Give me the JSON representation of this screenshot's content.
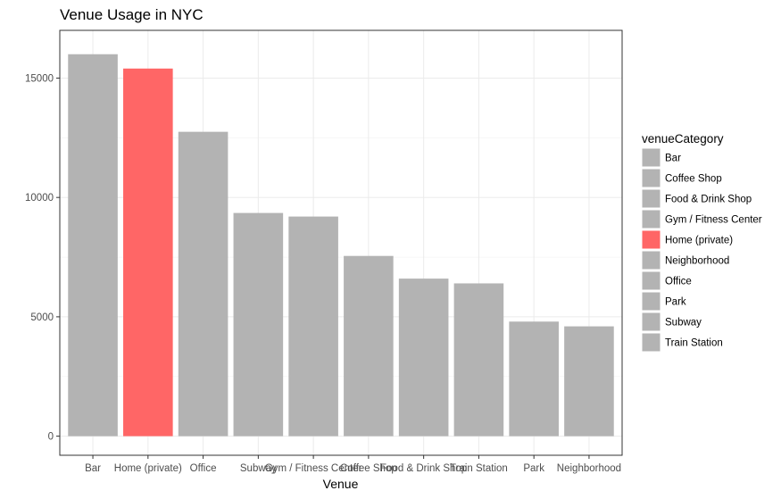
{
  "chart_data": {
    "type": "bar",
    "title": "Venue Usage in NYC",
    "xlabel": "Venue",
    "ylabel": "",
    "ylim": [
      -800,
      17000
    ],
    "yticks": [
      0,
      5000,
      10000,
      15000
    ],
    "yticks_labels": [
      "0",
      "5000",
      "10000",
      "15000"
    ],
    "grid": true,
    "legend_position": "right",
    "categories": [
      "Bar",
      "Home (private)",
      "Office",
      "Subway",
      "Gym / Fitness Center",
      "Coffee Shop",
      "Food & Drink Shop",
      "Train Station",
      "Park",
      "Neighborhood"
    ],
    "values": [
      16000,
      15400,
      12750,
      9350,
      9200,
      7550,
      6600,
      6400,
      4800,
      4600
    ],
    "bar_colors": [
      "#b3b3b3",
      "#ff6666",
      "#b3b3b3",
      "#b3b3b3",
      "#b3b3b3",
      "#b3b3b3",
      "#b3b3b3",
      "#b3b3b3",
      "#b3b3b3",
      "#b3b3b3"
    ],
    "legend": {
      "title": "venueCategory",
      "entries": [
        {
          "label": "Bar",
          "color": "#b3b3b3"
        },
        {
          "label": "Coffee Shop",
          "color": "#b3b3b3"
        },
        {
          "label": "Food & Drink Shop",
          "color": "#b3b3b3"
        },
        {
          "label": "Gym / Fitness Center",
          "color": "#b3b3b3"
        },
        {
          "label": "Home (private)",
          "color": "#ff6666"
        },
        {
          "label": "Neighborhood",
          "color": "#b3b3b3"
        },
        {
          "label": "Office",
          "color": "#b3b3b3"
        },
        {
          "label": "Park",
          "color": "#b3b3b3"
        },
        {
          "label": "Subway",
          "color": "#b3b3b3"
        },
        {
          "label": "Train Station",
          "color": "#b3b3b3"
        }
      ]
    }
  }
}
